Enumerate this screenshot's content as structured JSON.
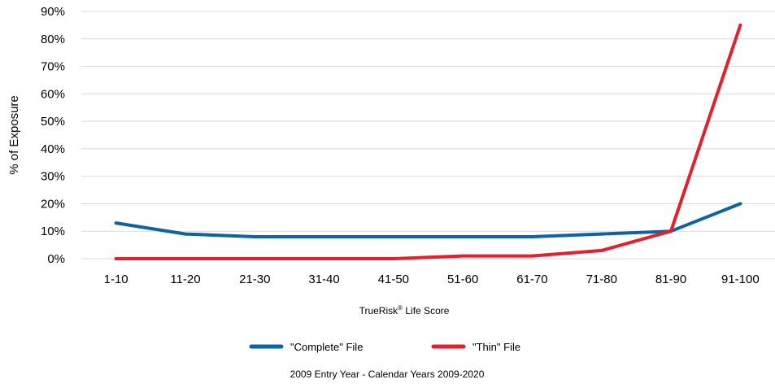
{
  "chart_data": {
    "type": "line",
    "categories": [
      "1-10",
      "11-20",
      "21-30",
      "31-40",
      "41-50",
      "51-60",
      "61-70",
      "71-80",
      "81-90",
      "91-100"
    ],
    "series": [
      {
        "name": "\"Complete\" File",
        "color": "#0e63a0",
        "values": [
          13,
          9,
          8,
          8,
          8,
          8,
          8,
          9,
          10,
          20
        ]
      },
      {
        "name": "\"Thin\" File",
        "color": "#e3202c",
        "values": [
          0,
          0,
          0,
          0,
          0,
          1,
          1,
          3,
          10,
          85
        ]
      }
    ],
    "yticks": [
      "0%",
      "10%",
      "20%",
      "30%",
      "40%",
      "50%",
      "60%",
      "70%",
      "80%",
      "90%"
    ],
    "ylim": [
      0,
      90
    ],
    "ylabel": "% of Exposure",
    "xlabel_main": "TrueRisk",
    "xlabel_sup": "®",
    "xlabel_rest": " Life Score",
    "grid": true,
    "legend_position": "bottom",
    "caption": "2009 Entry Year - Calendar Years 2009-2020",
    "gridline_color": "#d9d9d9"
  }
}
